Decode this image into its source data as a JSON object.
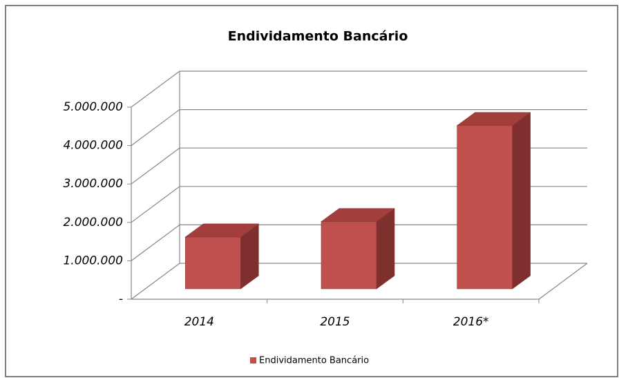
{
  "chart_data": {
    "type": "bar3d",
    "title": "Endividamento Bancário",
    "categories": [
      "2014",
      "2015",
      "2016*"
    ],
    "series": [
      {
        "name": "Endividamento Bancário",
        "color": "#c0504d",
        "values": [
          1350000,
          1750000,
          4250000
        ]
      }
    ],
    "ylim": [
      0,
      5000000
    ],
    "yticks": [
      {
        "value": 0,
        "label": "-"
      },
      {
        "value": 1000000,
        "label": "1.000.000"
      },
      {
        "value": 2000000,
        "label": "2.000.000"
      },
      {
        "value": 3000000,
        "label": "3.000.000"
      },
      {
        "value": 4000000,
        "label": "4.000.000"
      },
      {
        "value": 5000000,
        "label": "5.000.000"
      }
    ],
    "grid": true,
    "legend": "bottom"
  }
}
